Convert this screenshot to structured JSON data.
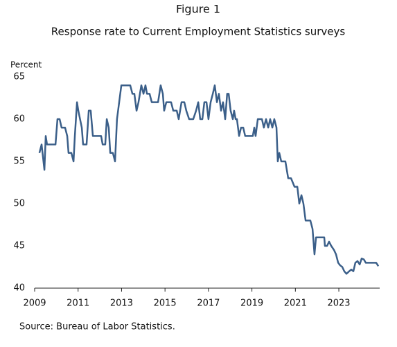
{
  "chart_data": {
    "type": "line",
    "title": "Figure 1",
    "subtitle": "Response rate to Current Employment Statistics surveys",
    "y_label": "Percent",
    "source": "Source: Bureau of Labor Statistics.",
    "grid": false,
    "xlim": [
      2009,
      2024.88
    ],
    "ylim": [
      40,
      65
    ],
    "xticks": [
      2009,
      2011,
      2013,
      2015,
      2017,
      2019,
      2021,
      2023
    ],
    "yticks": [
      40,
      45,
      50,
      55,
      60,
      65
    ],
    "x": [
      2009.22,
      2009.32,
      2009.45,
      2009.51,
      2009.57,
      2009.96,
      2010.05,
      2010.15,
      2010.24,
      2010.4,
      2010.5,
      2010.56,
      2010.69,
      2010.79,
      2010.85,
      2010.95,
      2011.01,
      2011.17,
      2011.23,
      2011.39,
      2011.49,
      2011.58,
      2011.68,
      2011.81,
      2012.06,
      2012.13,
      2012.25,
      2012.32,
      2012.41,
      2012.48,
      2012.6,
      2012.7,
      2012.79,
      2012.89,
      2012.99,
      2013.4,
      2013.5,
      2013.59,
      2013.69,
      2013.78,
      2013.91,
      2014.01,
      2014.1,
      2014.17,
      2014.29,
      2014.39,
      2014.52,
      2014.68,
      2014.8,
      2014.9,
      2014.96,
      2015.06,
      2015.28,
      2015.38,
      2015.54,
      2015.63,
      2015.76,
      2015.89,
      2015.98,
      2016.11,
      2016.21,
      2016.3,
      2016.43,
      2016.53,
      2016.62,
      2016.72,
      2016.81,
      2016.91,
      2017.0,
      2017.1,
      2017.2,
      2017.29,
      2017.39,
      2017.48,
      2017.58,
      2017.67,
      2017.77,
      2017.86,
      2017.93,
      2018.02,
      2018.12,
      2018.18,
      2018.25,
      2018.31,
      2018.41,
      2018.5,
      2018.6,
      2018.69,
      2018.89,
      2019.04,
      2019.11,
      2019.17,
      2019.27,
      2019.46,
      2019.55,
      2019.65,
      2019.75,
      2019.84,
      2019.94,
      2020.03,
      2020.13,
      2020.19,
      2020.26,
      2020.35,
      2020.54,
      2020.67,
      2020.8,
      2020.96,
      2021.09,
      2021.18,
      2021.28,
      2021.37,
      2021.47,
      2021.69,
      2021.79,
      2021.88,
      2021.95,
      2022.2,
      2022.33,
      2022.36,
      2022.46,
      2022.55,
      2022.65,
      2022.78,
      2022.87,
      2022.97,
      2023.06,
      2023.16,
      2023.25,
      2023.35,
      2023.48,
      2023.57,
      2023.67,
      2023.76,
      2023.86,
      2023.96,
      2024.05,
      2024.15,
      2024.24,
      2024.43,
      2024.62,
      2024.72,
      2024.82
    ],
    "series": [
      {
        "color": "#3b5f89",
        "values": [
          56,
          57,
          54,
          58,
          57,
          57,
          60,
          60,
          59,
          59,
          58,
          56,
          56,
          55,
          58,
          62,
          61,
          59,
          57,
          57,
          61,
          61,
          58,
          58,
          58,
          57,
          57,
          60,
          59,
          56,
          56,
          55,
          60,
          62,
          64,
          64,
          63,
          63,
          61,
          62,
          64,
          63,
          64,
          63,
          63,
          62,
          62,
          62,
          64,
          63,
          61,
          62,
          62,
          61,
          61,
          60,
          62,
          62,
          61,
          60,
          60,
          60,
          61,
          62,
          60,
          60,
          62,
          62,
          60,
          62,
          63,
          64,
          62,
          63,
          61,
          62,
          60,
          63,
          63,
          61,
          60,
          61,
          60,
          60,
          58,
          59,
          59,
          58,
          58,
          58,
          59,
          58,
          60,
          60,
          59,
          60,
          59,
          60,
          59,
          60,
          59,
          55,
          56,
          55,
          55,
          53,
          53,
          52,
          52,
          50,
          51,
          50,
          48,
          48,
          47,
          44,
          46,
          46,
          46,
          45,
          45,
          45.5,
          45,
          44.5,
          44,
          43,
          42.7,
          42.5,
          42,
          41.7,
          42,
          42.2,
          42,
          43,
          43.2,
          42.8,
          43.5,
          43.4,
          43,
          43,
          43,
          43,
          42.6
        ]
      }
    ]
  }
}
